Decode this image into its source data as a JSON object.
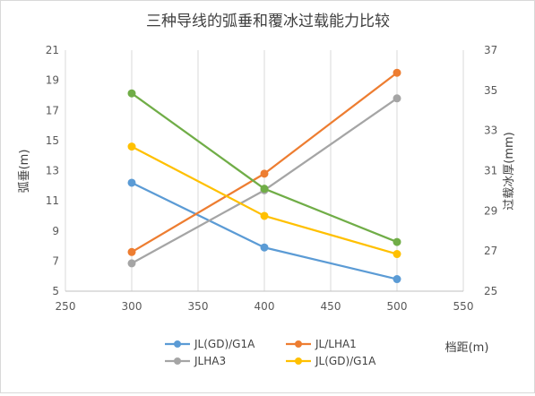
{
  "chart_data": {
    "type": "line",
    "title": "三种导线的弧垂和覆冰过载能力比较",
    "xlabel": "档距(m)",
    "ylabel": "弧垂(m)",
    "y2label": "过载冰厚(mm)",
    "x": [
      300,
      400,
      500
    ],
    "xlim": [
      250,
      550
    ],
    "xticks": [
      "250",
      "300",
      "350",
      "400",
      "450",
      "500",
      "550"
    ],
    "ylim": [
      5,
      21
    ],
    "yticks": [
      "5",
      "7",
      "9",
      "11",
      "13",
      "15",
      "17",
      "19",
      "21"
    ],
    "y2lim": [
      25,
      37
    ],
    "y2ticks": [
      "25",
      "27",
      "29",
      "31",
      "33",
      "35",
      "37"
    ],
    "grid": "vertical",
    "legend_position": "bottom",
    "series": [
      {
        "name": "JL(GD)/G1A",
        "axis": "left",
        "color": "#5b9bd5",
        "values": [
          12.2,
          7.9,
          5.8
        ]
      },
      {
        "name": "JL/LHA1",
        "axis": "left",
        "color": "#ed7d31",
        "values": [
          7.6,
          12.8,
          19.5
        ]
      },
      {
        "name": "JLHA3",
        "axis": "left",
        "color": "#a5a5a5",
        "values": [
          6.85,
          11.7,
          17.8
        ]
      },
      {
        "name": "JL(GD)/G1A",
        "axis": "right",
        "color": "#ffc000",
        "values": [
          32.2,
          28.75,
          26.85
        ]
      },
      {
        "name": "",
        "axis": "right",
        "color": "#70ad47",
        "values": [
          34.85,
          30.1,
          27.45
        ]
      }
    ]
  }
}
